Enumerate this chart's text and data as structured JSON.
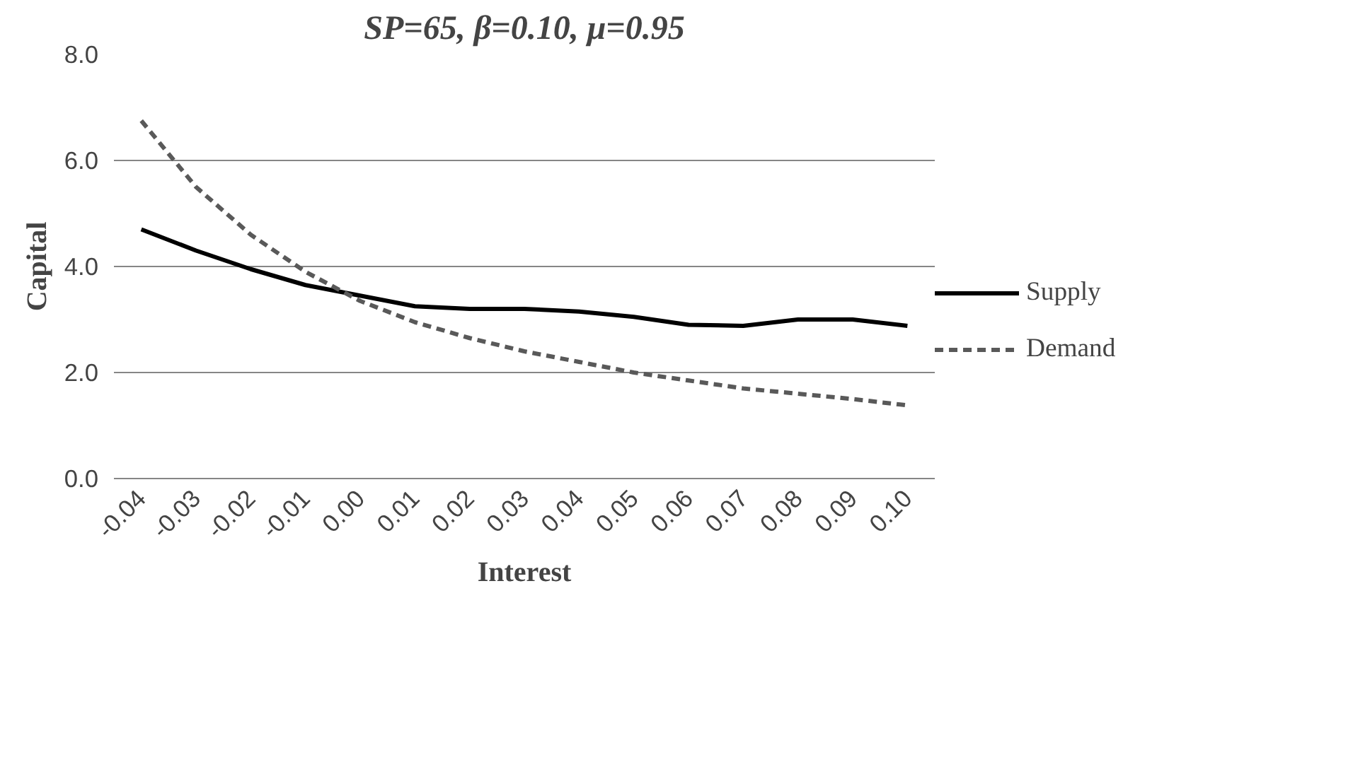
{
  "chart_data": {
    "type": "line",
    "title": "SP=65, β=0.10, μ=0.95",
    "xlabel": "Interest",
    "ylabel": "Capital",
    "categories": [
      "-0.04",
      "-0.03",
      "-0.02",
      "-0.01",
      "0.00",
      "0.01",
      "0.02",
      "0.03",
      "0.04",
      "0.05",
      "0.06",
      "0.07",
      "0.08",
      "0.09",
      "0.10"
    ],
    "ylim": [
      0,
      8
    ],
    "yticks": [
      {
        "value": 0,
        "label": "0.0"
      },
      {
        "value": 2,
        "label": "2.0"
      },
      {
        "value": 4,
        "label": "4.0"
      },
      {
        "value": 6,
        "label": "6.0"
      },
      {
        "value": 8,
        "label": "8.0"
      }
    ],
    "grid": "y",
    "legend": "right",
    "marker": "none",
    "series": [
      {
        "name": "Supply",
        "color": "#000000",
        "line_style": "solid",
        "values": [
          4.7,
          4.3,
          3.95,
          3.65,
          3.45,
          3.25,
          3.2,
          3.2,
          3.15,
          3.05,
          2.9,
          2.88,
          3.0,
          3.0,
          2.88
        ]
      },
      {
        "name": "Demand",
        "color": "#595959",
        "line_style": "dashed",
        "values": [
          6.75,
          5.5,
          4.6,
          3.9,
          3.35,
          2.95,
          2.65,
          2.4,
          2.2,
          2.0,
          1.85,
          1.7,
          1.6,
          1.5,
          1.38
        ]
      }
    ]
  }
}
